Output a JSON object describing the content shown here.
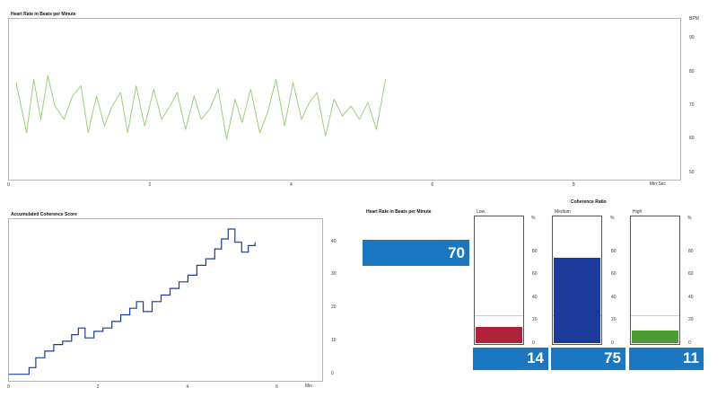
{
  "heart_rate_chart": {
    "title": "Heart Rate in Beats per Minute",
    "unit": "BPM",
    "y_ticks": [
      "90",
      "80",
      "70",
      "60",
      "50"
    ],
    "x_ticks": [
      "0",
      "2",
      "4",
      "6",
      "8"
    ],
    "x_unit": "Min:Sec",
    "line_color": "#9bcf7a"
  },
  "coherence_score_chart": {
    "title": "Accumulated Coherence Score",
    "y_ticks": [
      "40",
      "30",
      "20",
      "10",
      "0"
    ],
    "x_ticks": [
      "0",
      "2",
      "4",
      "6"
    ],
    "x_unit": "Min",
    "line_color": "#1c3c9c"
  },
  "heart_rate_panel": {
    "label": "Heart Rate in Beats per Minute",
    "value": "70"
  },
  "coherence_ratio": {
    "title": "Coherence Ratio",
    "unit": "%",
    "ticks": [
      "80",
      "60",
      "40",
      "20",
      "0"
    ],
    "bars": [
      {
        "label": "Low",
        "value": "14",
        "percent": 14,
        "color": "#b0213a"
      },
      {
        "label": "Medium",
        "value": "75",
        "percent": 75,
        "color": "#1b3a9a"
      },
      {
        "label": "High",
        "value": "11",
        "percent": 11,
        "color": "#4c9a34"
      }
    ]
  },
  "chart_data": [
    {
      "type": "line",
      "title": "Heart Rate in Beats per Minute",
      "ylabel": "BPM",
      "xlabel": "Min:Sec",
      "xlim": [
        0,
        9.5
      ],
      "ylim": [
        48,
        96
      ],
      "series": [
        {
          "x": [
            0.1,
            0.25,
            0.35,
            0.45,
            0.55,
            0.65,
            0.78,
            0.9,
            1.02,
            1.12,
            1.24,
            1.35,
            1.46,
            1.58,
            1.68,
            1.8,
            1.92,
            2.05,
            2.16,
            2.28,
            2.38,
            2.5,
            2.62,
            2.72,
            2.84,
            2.96,
            3.08,
            3.2,
            3.3,
            3.42,
            3.55,
            3.66,
            3.78,
            3.9,
            4.02,
            4.14,
            4.25,
            4.36,
            4.48,
            4.6,
            4.72,
            4.84,
            4.96,
            5.08,
            5.2,
            5.33
          ],
          "y": [
            77,
            62,
            78,
            66,
            79,
            70,
            66,
            73,
            76,
            62,
            73,
            64,
            70,
            74,
            62,
            76,
            64,
            75,
            66,
            70,
            74,
            63,
            73,
            66,
            69,
            75,
            60,
            72,
            65,
            75,
            62,
            68,
            78,
            64,
            77,
            66,
            71,
            74,
            61,
            72,
            67,
            70,
            66,
            71,
            63,
            78
          ]
        }
      ]
    },
    {
      "type": "line",
      "title": "Accumulated Coherence Score",
      "xlabel": "Min",
      "xlim": [
        0,
        7
      ],
      "ylim": [
        -2,
        47
      ],
      "series": [
        {
          "x": [
            0,
            0.3,
            0.45,
            0.6,
            0.8,
            1.0,
            1.2,
            1.4,
            1.55,
            1.7,
            1.9,
            2.1,
            2.3,
            2.5,
            2.7,
            2.85,
            3.0,
            3.2,
            3.4,
            3.6,
            3.8,
            4.0,
            4.2,
            4.4,
            4.6,
            4.75,
            4.9,
            5.05,
            5.2,
            5.35,
            5.5
          ],
          "y": [
            0,
            0,
            2,
            5,
            7,
            9,
            10,
            12,
            14,
            11,
            13,
            14,
            16,
            18,
            20,
            22,
            19,
            22,
            24,
            26,
            28,
            30,
            33,
            35,
            38,
            41,
            44,
            40,
            37,
            39,
            40
          ]
        }
      ]
    },
    {
      "type": "bar",
      "title": "Coherence Ratio",
      "categories": [
        "Low",
        "Medium",
        "High"
      ],
      "values": [
        14,
        75,
        11
      ],
      "ylabel": "%",
      "ylim": [
        0,
        100
      ]
    }
  ]
}
